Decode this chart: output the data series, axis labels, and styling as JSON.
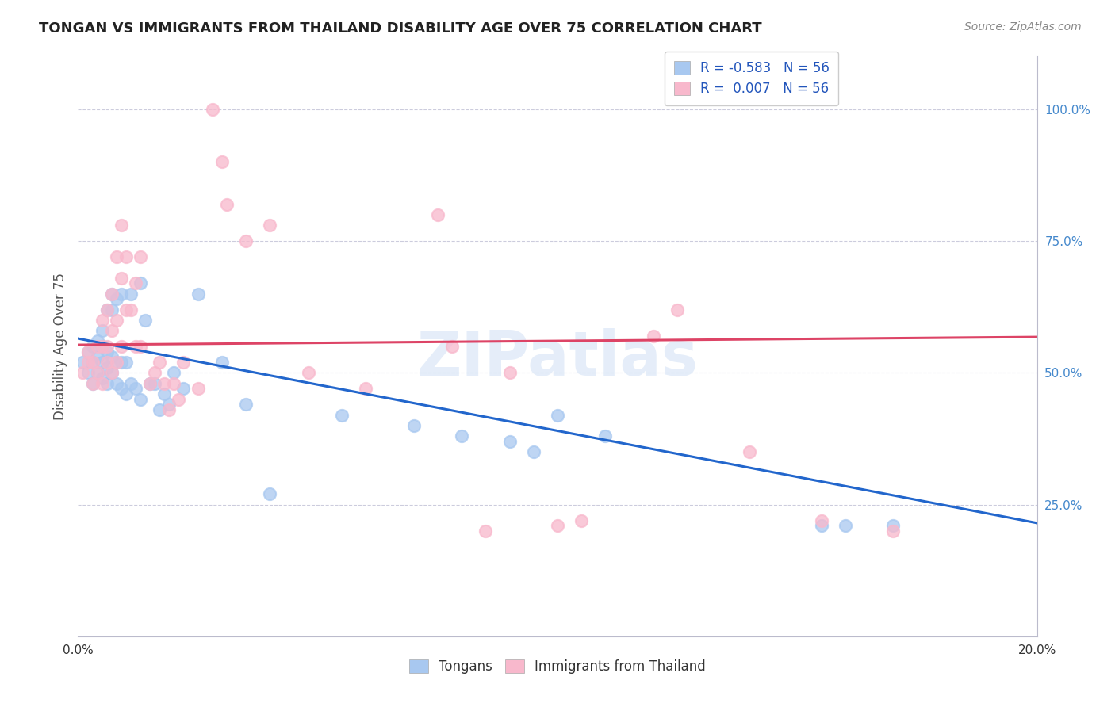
{
  "title": "TONGAN VS IMMIGRANTS FROM THAILAND DISABILITY AGE OVER 75 CORRELATION CHART",
  "source": "Source: ZipAtlas.com",
  "ylabel": "Disability Age Over 75",
  "xlim": [
    0.0,
    0.2
  ],
  "ylim": [
    0.0,
    1.1
  ],
  "blue_color": "#a8c8f0",
  "pink_color": "#f8b8cc",
  "blue_line_color": "#2266cc",
  "pink_line_color": "#dd4466",
  "watermark": "ZIPatlas",
  "blue_scatter": [
    [
      0.001,
      0.52
    ],
    [
      0.002,
      0.5
    ],
    [
      0.002,
      0.54
    ],
    [
      0.003,
      0.48
    ],
    [
      0.003,
      0.52
    ],
    [
      0.003,
      0.55
    ],
    [
      0.004,
      0.5
    ],
    [
      0.004,
      0.53
    ],
    [
      0.004,
      0.56
    ],
    [
      0.005,
      0.49
    ],
    [
      0.005,
      0.52
    ],
    [
      0.005,
      0.55
    ],
    [
      0.005,
      0.58
    ],
    [
      0.006,
      0.48
    ],
    [
      0.006,
      0.51
    ],
    [
      0.006,
      0.54
    ],
    [
      0.006,
      0.62
    ],
    [
      0.007,
      0.5
    ],
    [
      0.007,
      0.53
    ],
    [
      0.007,
      0.62
    ],
    [
      0.007,
      0.65
    ],
    [
      0.008,
      0.48
    ],
    [
      0.008,
      0.52
    ],
    [
      0.008,
      0.64
    ],
    [
      0.009,
      0.47
    ],
    [
      0.009,
      0.52
    ],
    [
      0.009,
      0.65
    ],
    [
      0.01,
      0.46
    ],
    [
      0.01,
      0.52
    ],
    [
      0.011,
      0.48
    ],
    [
      0.011,
      0.65
    ],
    [
      0.012,
      0.47
    ],
    [
      0.013,
      0.45
    ],
    [
      0.013,
      0.67
    ],
    [
      0.014,
      0.6
    ],
    [
      0.015,
      0.48
    ],
    [
      0.016,
      0.48
    ],
    [
      0.017,
      0.43
    ],
    [
      0.018,
      0.46
    ],
    [
      0.019,
      0.44
    ],
    [
      0.02,
      0.5
    ],
    [
      0.022,
      0.47
    ],
    [
      0.025,
      0.65
    ],
    [
      0.03,
      0.52
    ],
    [
      0.035,
      0.44
    ],
    [
      0.04,
      0.27
    ],
    [
      0.055,
      0.42
    ],
    [
      0.07,
      0.4
    ],
    [
      0.08,
      0.38
    ],
    [
      0.09,
      0.37
    ],
    [
      0.095,
      0.35
    ],
    [
      0.1,
      0.42
    ],
    [
      0.11,
      0.38
    ],
    [
      0.155,
      0.21
    ],
    [
      0.16,
      0.21
    ],
    [
      0.17,
      0.21
    ]
  ],
  "pink_scatter": [
    [
      0.001,
      0.5
    ],
    [
      0.002,
      0.52
    ],
    [
      0.002,
      0.54
    ],
    [
      0.003,
      0.48
    ],
    [
      0.003,
      0.52
    ],
    [
      0.004,
      0.5
    ],
    [
      0.004,
      0.55
    ],
    [
      0.005,
      0.48
    ],
    [
      0.005,
      0.55
    ],
    [
      0.005,
      0.6
    ],
    [
      0.006,
      0.52
    ],
    [
      0.006,
      0.55
    ],
    [
      0.006,
      0.62
    ],
    [
      0.007,
      0.5
    ],
    [
      0.007,
      0.58
    ],
    [
      0.007,
      0.65
    ],
    [
      0.008,
      0.52
    ],
    [
      0.008,
      0.6
    ],
    [
      0.008,
      0.72
    ],
    [
      0.009,
      0.55
    ],
    [
      0.009,
      0.68
    ],
    [
      0.009,
      0.78
    ],
    [
      0.01,
      0.62
    ],
    [
      0.01,
      0.72
    ],
    [
      0.011,
      0.62
    ],
    [
      0.012,
      0.55
    ],
    [
      0.012,
      0.67
    ],
    [
      0.013,
      0.55
    ],
    [
      0.013,
      0.72
    ],
    [
      0.015,
      0.48
    ],
    [
      0.016,
      0.5
    ],
    [
      0.017,
      0.52
    ],
    [
      0.018,
      0.48
    ],
    [
      0.019,
      0.43
    ],
    [
      0.02,
      0.48
    ],
    [
      0.021,
      0.45
    ],
    [
      0.022,
      0.52
    ],
    [
      0.025,
      0.47
    ],
    [
      0.028,
      1.0
    ],
    [
      0.03,
      0.9
    ],
    [
      0.031,
      0.82
    ],
    [
      0.035,
      0.75
    ],
    [
      0.04,
      0.78
    ],
    [
      0.048,
      0.5
    ],
    [
      0.06,
      0.47
    ],
    [
      0.075,
      0.8
    ],
    [
      0.078,
      0.55
    ],
    [
      0.085,
      0.2
    ],
    [
      0.09,
      0.5
    ],
    [
      0.1,
      0.21
    ],
    [
      0.105,
      0.22
    ],
    [
      0.12,
      0.57
    ],
    [
      0.125,
      0.62
    ],
    [
      0.14,
      0.35
    ],
    [
      0.155,
      0.22
    ],
    [
      0.17,
      0.2
    ]
  ],
  "blue_line_x": [
    0.0,
    0.2
  ],
  "blue_line_y": [
    0.565,
    0.215
  ],
  "pink_line_x": [
    0.0,
    0.2
  ],
  "pink_line_y": [
    0.553,
    0.568
  ]
}
